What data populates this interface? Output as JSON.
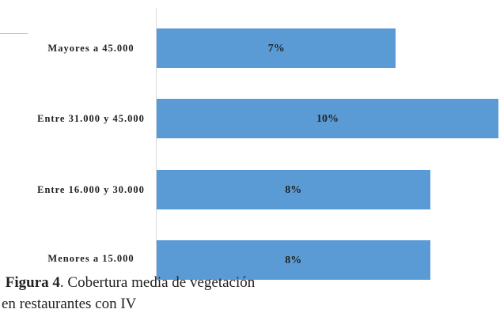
{
  "chart_data": {
    "type": "bar",
    "orientation": "horizontal",
    "categories": [
      "Mayores a 45.000",
      "Entre 31.000 y 45.000",
      "Entre 16.000 y 30.000",
      "Menores a 15.000"
    ],
    "values": [
      7,
      10,
      8,
      8
    ],
    "value_labels": [
      "7%",
      "10%",
      "8%",
      "8%"
    ],
    "color": "#5b9bd5"
  },
  "caption": {
    "label": "Figura 4",
    "line1": ". Cobertura media de vegetación",
    "line2": "en restaurantes con IV"
  }
}
